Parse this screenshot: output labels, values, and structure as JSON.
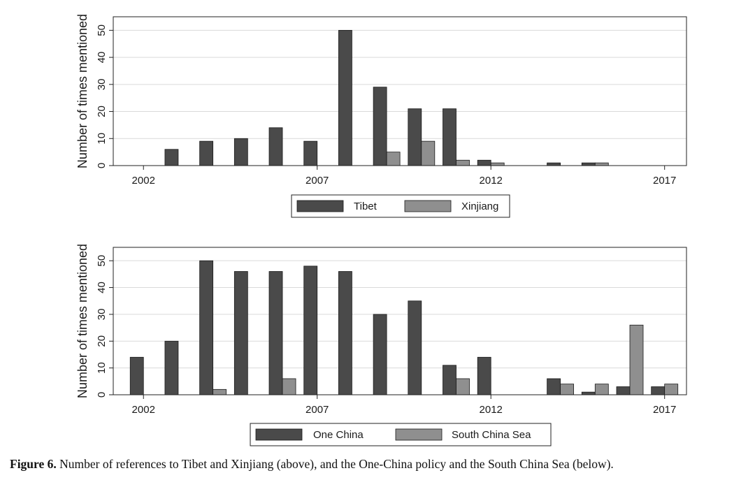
{
  "colors": {
    "series1": "#4a4a4a",
    "series2": "#8f8f8f",
    "grid": "#d9d9d9",
    "frame": "#222222"
  },
  "chart_data": [
    {
      "type": "bar",
      "ylabel": "Number of times  mentioned",
      "xlabel": "",
      "ylim": [
        0,
        55
      ],
      "yticks": [
        0,
        10,
        20,
        30,
        40,
        50
      ],
      "xticks": [
        2002,
        2007,
        2012,
        2017
      ],
      "x": [
        2002,
        2003,
        2004,
        2005,
        2006,
        2007,
        2008,
        2009,
        2010,
        2011,
        2012,
        2013,
        2014,
        2015,
        2016,
        2017
      ],
      "series": [
        {
          "name": "Tibet",
          "values": [
            0,
            6,
            9,
            10,
            14,
            9,
            50,
            29,
            21,
            21,
            2,
            0,
            1,
            1,
            0,
            0
          ]
        },
        {
          "name": "Xinjiang",
          "values": [
            0,
            0,
            0,
            0,
            0,
            0,
            0,
            5,
            9,
            2,
            1,
            0,
            0,
            1,
            0,
            0
          ]
        }
      ],
      "grid": true,
      "legend": "bottom"
    },
    {
      "type": "bar",
      "ylabel": "Number of times  mentioned",
      "xlabel": "",
      "ylim": [
        0,
        55
      ],
      "yticks": [
        0,
        10,
        20,
        30,
        40,
        50
      ],
      "xticks": [
        2002,
        2007,
        2012,
        2017
      ],
      "x": [
        2002,
        2003,
        2004,
        2005,
        2006,
        2007,
        2008,
        2009,
        2010,
        2011,
        2012,
        2013,
        2014,
        2015,
        2016,
        2017
      ],
      "series": [
        {
          "name": "One China",
          "values": [
            14,
            20,
            50,
            46,
            46,
            48,
            46,
            30,
            35,
            11,
            14,
            0,
            6,
            1,
            3,
            3
          ]
        },
        {
          "name": "South China Sea",
          "values": [
            0,
            0,
            2,
            0,
            6,
            0,
            0,
            0,
            0,
            6,
            0,
            0,
            4,
            4,
            26,
            4
          ]
        }
      ],
      "grid": true,
      "legend": "bottom"
    }
  ],
  "caption": {
    "label": "Figure 6.",
    "text": " Number of references to Tibet and Xinjiang (above), and the One-China policy and the South China Sea (below)."
  }
}
